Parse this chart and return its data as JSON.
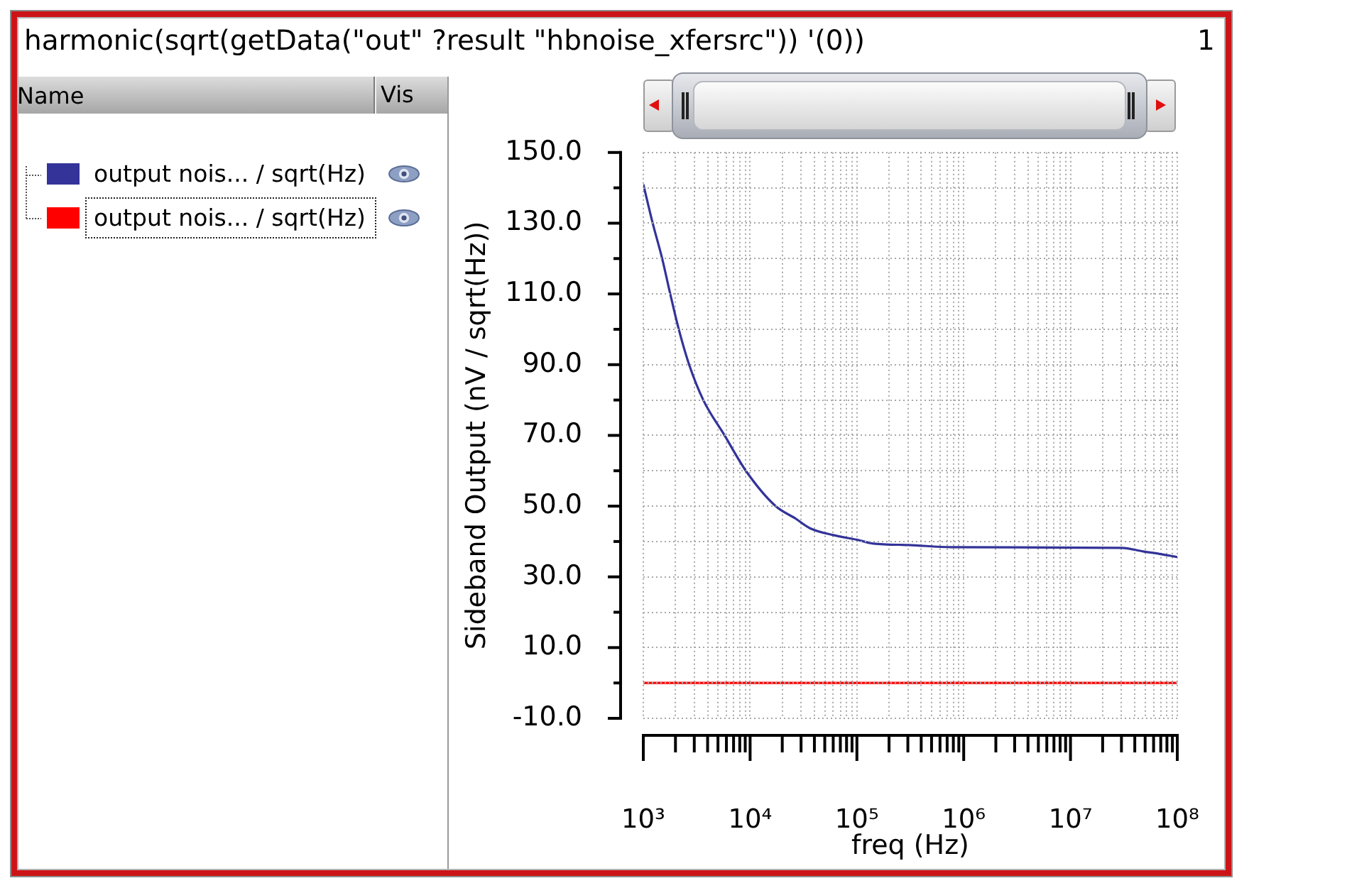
{
  "chart_data": {
    "type": "line",
    "title": "harmonic(sqrt(getData(\"out\" ?result \"hbnoise_xfersrc\")) '(0))",
    "xlabel": "freq (Hz)",
    "ylabel": "Sideband Output (nV / sqrt(Hz))",
    "legend_title": "Name",
    "annotations": [
      "Vis",
      "1"
    ],
    "series": [
      {
        "name": "output nois... / sqrt(Hz)",
        "color": "#333399",
        "x": [
          1000,
          1224,
          1502,
          1787,
          2148,
          2686,
          3645,
          5768,
          9120,
          17340,
          26600,
          36100,
          60200,
          100000,
          143000,
          307000,
          769000,
          30200000,
          47900000,
          68200000,
          100000000
        ],
        "values": [
          141,
          130,
          120,
          110,
          100,
          90,
          80,
          70,
          60,
          50,
          46.5,
          43.8,
          41.8,
          40.5,
          39.4,
          39,
          38.4,
          38.2,
          37.2,
          36.5,
          35.6
        ]
      },
      {
        "name": "output nois... / sqrt(Hz)",
        "color": "#ff0000",
        "x": [
          1000,
          100000000
        ],
        "values": [
          0,
          0
        ]
      }
    ],
    "xlim": [
      1000,
      100000000
    ],
    "ylim": [
      -10,
      150
    ],
    "xticks": [
      {
        "value": 1000,
        "label": "10³"
      },
      {
        "value": 2000,
        "label": null
      },
      {
        "value": 3000,
        "label": null
      },
      {
        "value": 4000,
        "label": null
      },
      {
        "value": 5000,
        "label": null
      },
      {
        "value": 6000,
        "label": null
      },
      {
        "value": 7000,
        "label": null
      },
      {
        "value": 8000,
        "label": null
      },
      {
        "value": 9000,
        "label": null
      },
      {
        "value": 10000,
        "label": "10⁴"
      },
      {
        "value": 20000,
        "label": null
      },
      {
        "value": 30000,
        "label": null
      },
      {
        "value": 40000,
        "label": null
      },
      {
        "value": 50000,
        "label": null
      },
      {
        "value": 60000,
        "label": null
      },
      {
        "value": 70000,
        "label": null
      },
      {
        "value": 80000,
        "label": null
      },
      {
        "value": 90000,
        "label": null
      },
      {
        "value": 100000,
        "label": "10⁵"
      },
      {
        "value": 200000,
        "label": null
      },
      {
        "value": 300000,
        "label": null
      },
      {
        "value": 400000,
        "label": null
      },
      {
        "value": 500000,
        "label": null
      },
      {
        "value": 600000,
        "label": null
      },
      {
        "value": 700000,
        "label": null
      },
      {
        "value": 800000,
        "label": null
      },
      {
        "value": 900000,
        "label": null
      },
      {
        "value": 1000000,
        "label": "10⁶"
      },
      {
        "value": 2000000,
        "label": null
      },
      {
        "value": 3000000,
        "label": null
      },
      {
        "value": 4000000,
        "label": null
      },
      {
        "value": 5000000,
        "label": null
      },
      {
        "value": 6000000,
        "label": null
      },
      {
        "value": 7000000,
        "label": null
      },
      {
        "value": 8000000,
        "label": null
      },
      {
        "value": 9000000,
        "label": null
      },
      {
        "value": 10000000,
        "label": "10⁷"
      },
      {
        "value": 20000000,
        "label": null
      },
      {
        "value": 30000000,
        "label": null
      },
      {
        "value": 40000000,
        "label": null
      },
      {
        "value": 50000000,
        "label": null
      },
      {
        "value": 60000000,
        "label": null
      },
      {
        "value": 70000000,
        "label": null
      },
      {
        "value": 80000000,
        "label": null
      },
      {
        "value": 90000000,
        "label": null
      },
      {
        "value": 100000000,
        "label": "10⁸"
      }
    ],
    "yticks": [
      {
        "value": -10,
        "label": "-10.0"
      },
      {
        "value": 0,
        "label": null
      },
      {
        "value": 10,
        "label": "10.0"
      },
      {
        "value": 20,
        "label": null
      },
      {
        "value": 30,
        "label": "30.0"
      },
      {
        "value": 40,
        "label": null
      },
      {
        "value": 50,
        "label": "50.0"
      },
      {
        "value": 60,
        "label": null
      },
      {
        "value": 70,
        "label": "70.0"
      },
      {
        "value": 80,
        "label": null
      },
      {
        "value": 90,
        "label": "90.0"
      },
      {
        "value": 100,
        "label": null
      },
      {
        "value": 110,
        "label": "110.0"
      },
      {
        "value": 120,
        "label": null
      },
      {
        "value": 130,
        "label": "130.0"
      },
      {
        "value": 140,
        "label": null
      },
      {
        "value": 150,
        "label": "150.0"
      }
    ],
    "log": "x",
    "grid": true,
    "legend": "left"
  }
}
